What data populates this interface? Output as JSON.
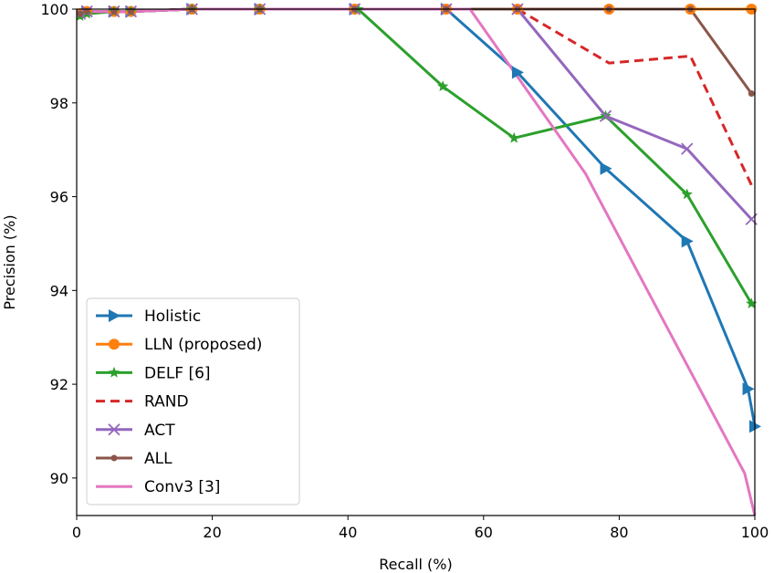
{
  "chart_data": {
    "type": "line",
    "title": "",
    "xlabel": "Recall (%)",
    "ylabel": "Precision (%)",
    "xlim": [
      0,
      100
    ],
    "ylim": [
      89.2,
      100
    ],
    "xticks": [
      0,
      20,
      40,
      60,
      80,
      100
    ],
    "yticks": [
      90,
      92,
      94,
      96,
      98,
      100
    ],
    "grid": false,
    "legend_position": "lower-left",
    "series": [
      {
        "name": "Holistic",
        "color": "#1f77b4",
        "marker": "triangle-right",
        "linestyle": "solid",
        "x": [
          0.5,
          1.5,
          5.5,
          8,
          17,
          27,
          41,
          54.5,
          65,
          78,
          90,
          99,
          100
        ],
        "y": [
          99.9,
          99.95,
          99.95,
          99.95,
          100,
          100,
          100,
          100,
          98.65,
          96.6,
          95.05,
          91.9,
          91.1
        ]
      },
      {
        "name": "LLN (proposed)",
        "color": "#ff7f0e",
        "marker": "circle",
        "linestyle": "solid",
        "x": [
          0.5,
          1.5,
          5.5,
          8,
          17,
          27,
          41,
          54.5,
          65,
          78.5,
          90.5,
          99.5
        ],
        "y": [
          99.9,
          99.95,
          99.95,
          99.95,
          100,
          100,
          100,
          100,
          100,
          100,
          100,
          100
        ]
      },
      {
        "name": "DELF [6]",
        "color": "#2ca02c",
        "marker": "star",
        "linestyle": "solid",
        "x": [
          0.5,
          1.5,
          5.5,
          8,
          17,
          27,
          41.5,
          54,
          64.5,
          78,
          90,
          99.5
        ],
        "y": [
          99.85,
          99.9,
          99.95,
          99.95,
          100,
          100,
          100,
          98.35,
          97.25,
          97.72,
          96.05,
          93.72
        ]
      },
      {
        "name": "RAND",
        "color": "#d62728",
        "marker": "none",
        "linestyle": "dashed",
        "x": [
          0.5,
          1.5,
          5.5,
          8,
          17,
          27,
          41,
          54.5,
          65,
          78.5,
          90.5,
          99.5
        ],
        "y": [
          99.9,
          99.95,
          99.95,
          99.95,
          100,
          100,
          100,
          100,
          100,
          98.85,
          99.0,
          96.25
        ]
      },
      {
        "name": "ACT",
        "color": "#9467bd",
        "marker": "x",
        "linestyle": "solid",
        "x": [
          0.5,
          1.5,
          5.5,
          8,
          17,
          27,
          41,
          54.5,
          65,
          78,
          90,
          99.5
        ],
        "y": [
          99.9,
          99.95,
          99.95,
          99.95,
          100,
          100,
          100,
          100,
          100,
          97.72,
          97.02,
          95.52
        ]
      },
      {
        "name": "ALL",
        "color": "#8c564b",
        "marker": "dot",
        "linestyle": "solid",
        "x": [
          0.5,
          1.5,
          5.5,
          8,
          17,
          27,
          41,
          54.5,
          65,
          78.5,
          90.5,
          99.5
        ],
        "y": [
          99.9,
          99.95,
          99.95,
          99.95,
          100,
          100,
          100,
          100,
          100,
          100,
          100,
          98.2
        ]
      },
      {
        "name": "Conv3 [3]",
        "color": "#e377c2",
        "marker": "none",
        "linestyle": "solid",
        "x": [
          0.5,
          1.5,
          5.5,
          8,
          17,
          27,
          41,
          58,
          75,
          86,
          98.5,
          100
        ],
        "y": [
          99.85,
          99.95,
          99.95,
          99.95,
          100,
          100,
          100,
          100,
          96.5,
          93.5,
          90.1,
          89.2
        ]
      }
    ]
  }
}
